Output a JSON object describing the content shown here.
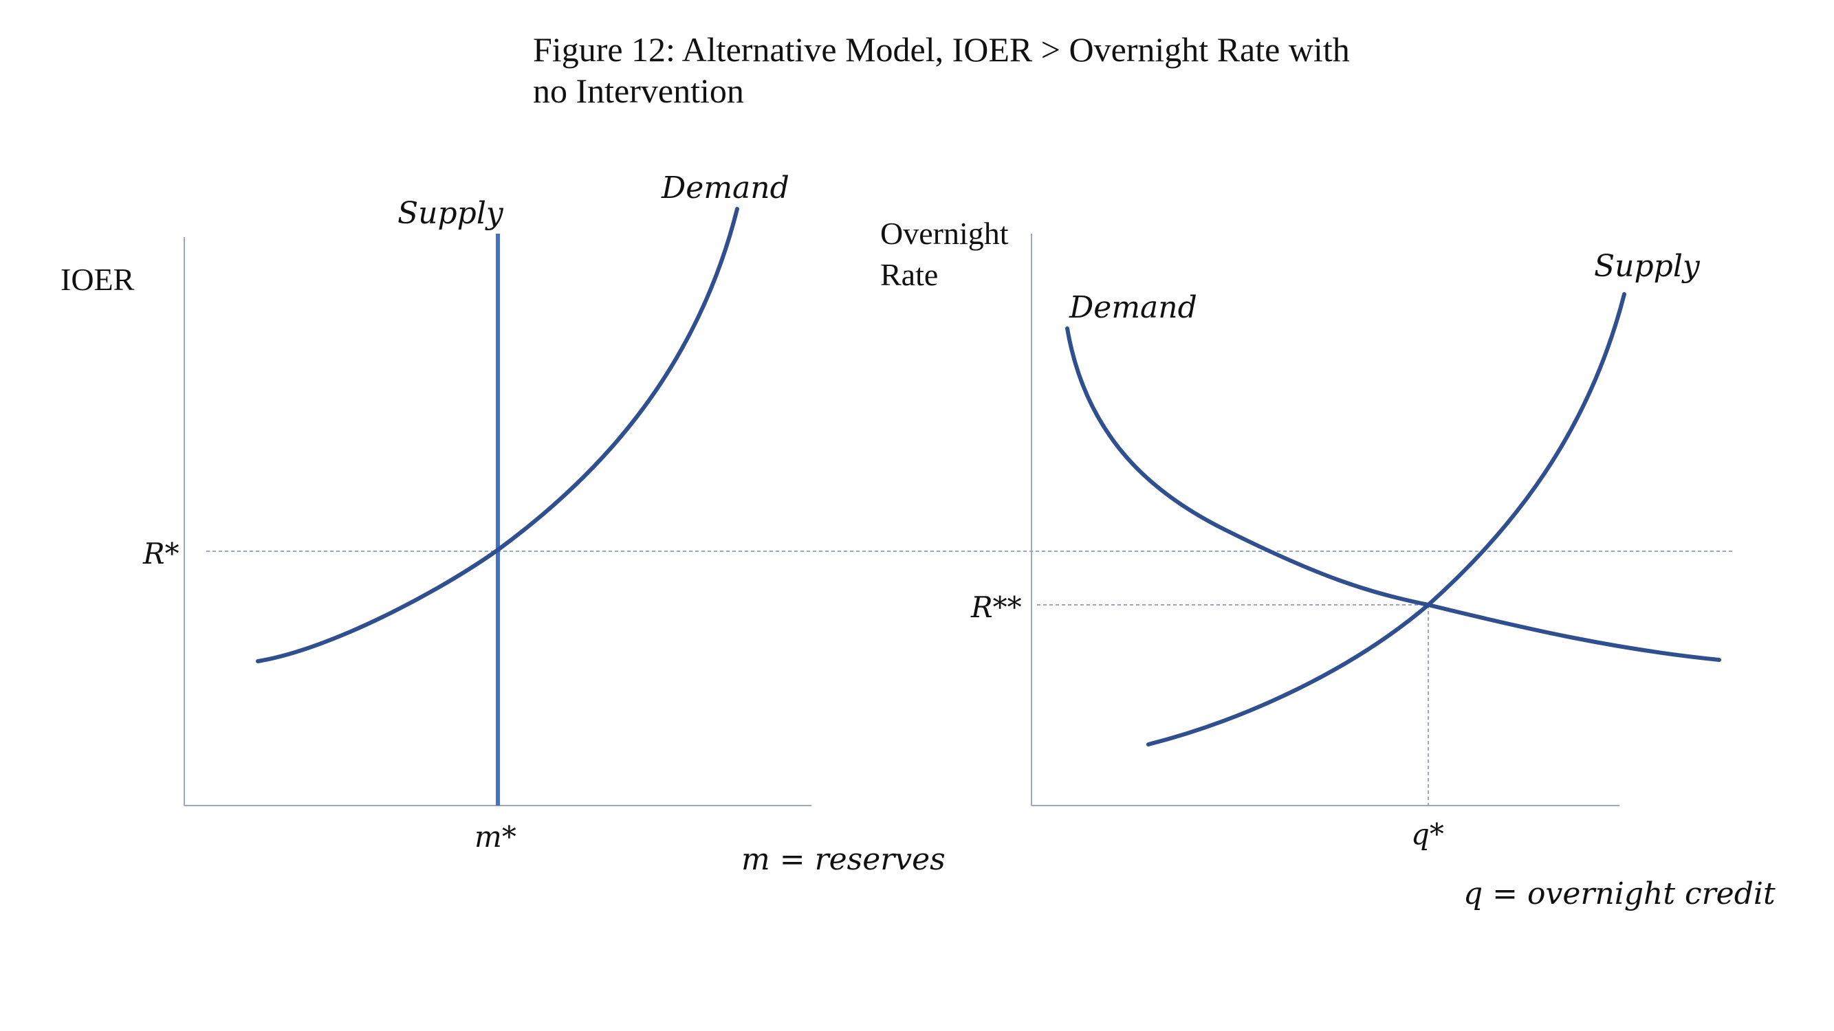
{
  "title": {
    "line1": "Figure 12: Alternative Model, IOER > Overnight Rate with",
    "line2": "no Intervention"
  },
  "left_panel": {
    "y_axis_label": "IOER",
    "supply_label": "Supply",
    "demand_label": "Demand",
    "r_label": "R*",
    "x_tick_label": "m*",
    "x_axis_label": "m = reserves"
  },
  "right_panel": {
    "y_axis_label_line1": "Overnight",
    "y_axis_label_line2": "Rate",
    "demand_label": "Demand",
    "supply_label": "Supply",
    "r_label": "R**",
    "x_tick_label": "q*",
    "x_axis_label": "q = overnight credit"
  },
  "colors": {
    "curve": "#2f4f8f",
    "vertical_supply": "#4472c4",
    "axis": "#9aa7c0",
    "guide": "#9aa7c0"
  }
}
